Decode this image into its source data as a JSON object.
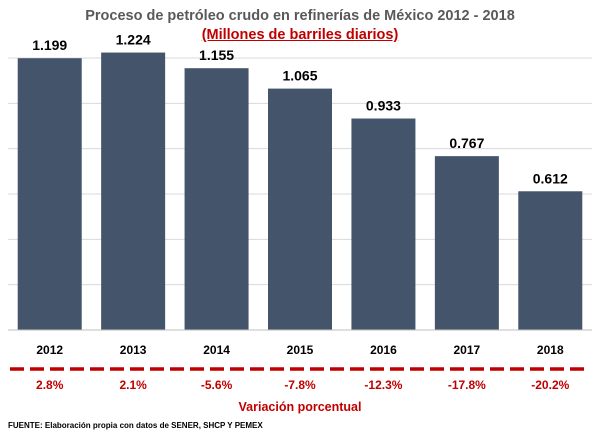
{
  "chart_data": {
    "type": "bar",
    "title": "Proceso de petróleo crudo en refinerías de México 2012 - 2018",
    "subtitle": "(Millones de barriles diarios)",
    "categories": [
      "2012",
      "2013",
      "2014",
      "2015",
      "2016",
      "2017",
      "2018"
    ],
    "values": [
      1.199,
      1.224,
      1.155,
      1.065,
      0.933,
      0.767,
      0.612
    ],
    "value_labels": [
      "1.199",
      "1.224",
      "1.155",
      "1.065",
      "0.933",
      "0.767",
      "0.612"
    ],
    "ylim": [
      0,
      1.2
    ],
    "grid": true,
    "variation": {
      "title": "Variación porcentual",
      "values": [
        "2.8%",
        "2.1%",
        "-5.6%",
        "-7.8%",
        "-12.3%",
        "-17.8%",
        "-20.2%"
      ]
    }
  },
  "source": "FUENTE: Elaboración propia con datos de SENER, SHCP Y PEMEX",
  "colors": {
    "bar": "#44546a",
    "grid": "#d9d9d9",
    "accent": "#c00000",
    "title": "#595959"
  }
}
